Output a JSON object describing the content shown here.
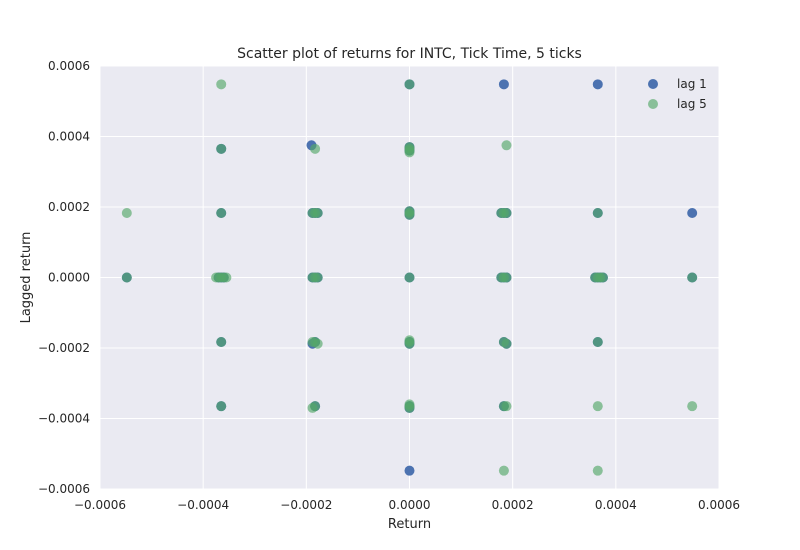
{
  "chart_data": {
    "type": "scatter",
    "title": "Scatter plot of returns for INTC, Tick Time, 5 ticks",
    "xlabel": "Return",
    "ylabel": "Lagged return",
    "xlim": [
      -0.0006,
      0.0006
    ],
    "ylim": [
      -0.0006,
      0.0006
    ],
    "x_ticks": [
      -0.0006,
      -0.0004,
      -0.0002,
      0.0,
      0.0002,
      0.0004,
      0.0006
    ],
    "y_ticks": [
      -0.0006,
      -0.0004,
      -0.0002,
      0.0,
      0.0002,
      0.0004,
      0.0006
    ],
    "x_tick_labels": [
      "−0.0006",
      "−0.0004",
      "−0.0002",
      "0.0000",
      "0.0002",
      "0.0004",
      "0.0006"
    ],
    "y_tick_labels": [
      "−0.0006",
      "−0.0004",
      "−0.0002",
      "0.0000",
      "0.0002",
      "0.0004",
      "0.0006"
    ],
    "grid": true,
    "legend_position": "top-right",
    "background_color": "#eaeaf2",
    "grid_color": "#ffffff",
    "series": [
      {
        "name": "lag 1",
        "color": "#4c72b0",
        "points": [
          [
            -0.000548,
            0.0
          ],
          [
            -0.000365,
            0.000365
          ],
          [
            -0.000365,
            0.000183
          ],
          [
            -0.000365,
            0.0
          ],
          [
            -0.00036,
            0.0
          ],
          [
            -0.00037,
            0.0
          ],
          [
            -0.000365,
            -0.000183
          ],
          [
            -0.000365,
            -0.000365
          ],
          [
            -0.00019,
            0.000375
          ],
          [
            -0.000183,
            0.000183
          ],
          [
            -0.000188,
            0.000183
          ],
          [
            -0.000178,
            0.000183
          ],
          [
            -0.000183,
            0.0
          ],
          [
            -0.000188,
            0.0
          ],
          [
            -0.000178,
            0.0
          ],
          [
            -0.000183,
            -0.000183
          ],
          [
            -0.000188,
            -0.000188
          ],
          [
            -0.000183,
            -0.000365
          ],
          [
            0.0,
            0.000548
          ],
          [
            0.0,
            0.000365
          ],
          [
            0.0,
            0.00037
          ],
          [
            0.0,
            0.00036
          ],
          [
            0.0,
            0.000183
          ],
          [
            0.0,
            0.000188
          ],
          [
            0.0,
            0.000178
          ],
          [
            0.0,
            0.0
          ],
          [
            0.0,
            -0.000183
          ],
          [
            0.0,
            -0.000188
          ],
          [
            0.0,
            -0.000365
          ],
          [
            0.0,
            -0.00037
          ],
          [
            0.0,
            -0.000548
          ],
          [
            0.000183,
            0.000548
          ],
          [
            0.000183,
            0.000183
          ],
          [
            0.000188,
            0.000183
          ],
          [
            0.000178,
            0.000183
          ],
          [
            0.000183,
            0.0
          ],
          [
            0.000188,
            0.0
          ],
          [
            0.000178,
            0.0
          ],
          [
            0.000183,
            -0.000183
          ],
          [
            0.000188,
            -0.000188
          ],
          [
            0.000183,
            -0.000365
          ],
          [
            0.000365,
            0.000548
          ],
          [
            0.000365,
            0.000183
          ],
          [
            0.000365,
            0.0
          ],
          [
            0.00037,
            0.0
          ],
          [
            0.000375,
            0.0
          ],
          [
            0.00036,
            0.0
          ],
          [
            0.000365,
            -0.000183
          ],
          [
            0.000548,
            0.000183
          ],
          [
            0.000548,
            0.0
          ]
        ]
      },
      {
        "name": "lag 5",
        "color": "#55a868",
        "points": [
          [
            -0.000548,
            0.000183
          ],
          [
            -0.000548,
            0.0
          ],
          [
            -0.000365,
            0.000548
          ],
          [
            -0.000365,
            0.000365
          ],
          [
            -0.000365,
            0.000183
          ],
          [
            -0.000365,
            0.0
          ],
          [
            -0.00036,
            0.0
          ],
          [
            -0.00037,
            0.0
          ],
          [
            -0.000355,
            0.0
          ],
          [
            -0.000375,
            0.0
          ],
          [
            -0.000365,
            -0.000183
          ],
          [
            -0.000365,
            -0.000365
          ],
          [
            -0.000183,
            0.000365
          ],
          [
            -0.000183,
            0.000183
          ],
          [
            -0.000188,
            0.000183
          ],
          [
            -0.000178,
            0.000183
          ],
          [
            -0.000183,
            0.0
          ],
          [
            -0.000188,
            0.0
          ],
          [
            -0.000178,
            0.0
          ],
          [
            -0.000183,
            -0.000183
          ],
          [
            -0.000188,
            -0.000183
          ],
          [
            -0.000178,
            -0.000188
          ],
          [
            -0.000183,
            -0.000365
          ],
          [
            -0.000188,
            -0.00037
          ],
          [
            0.0,
            0.000548
          ],
          [
            0.0,
            0.000365
          ],
          [
            0.0,
            0.00037
          ],
          [
            0.0,
            0.00036
          ],
          [
            0.0,
            0.000355
          ],
          [
            0.0,
            0.000183
          ],
          [
            0.0,
            0.000188
          ],
          [
            0.0,
            0.000178
          ],
          [
            0.0,
            0.0
          ],
          [
            0.0,
            -0.000183
          ],
          [
            0.0,
            -0.000188
          ],
          [
            0.0,
            -0.000178
          ],
          [
            0.0,
            -0.000365
          ],
          [
            0.0,
            -0.00037
          ],
          [
            0.0,
            -0.00036
          ],
          [
            0.000188,
            0.000375
          ],
          [
            0.000183,
            0.000183
          ],
          [
            0.000188,
            0.000183
          ],
          [
            0.000178,
            0.000183
          ],
          [
            0.000183,
            0.0
          ],
          [
            0.000188,
            0.0
          ],
          [
            0.000178,
            0.0
          ],
          [
            0.000183,
            -0.000183
          ],
          [
            0.000188,
            -0.000188
          ],
          [
            0.000183,
            -0.000365
          ],
          [
            0.000188,
            -0.000365
          ],
          [
            0.000183,
            -0.000548
          ],
          [
            0.000365,
            0.000183
          ],
          [
            0.000365,
            0.0
          ],
          [
            0.00037,
            0.0
          ],
          [
            0.000375,
            0.0
          ],
          [
            0.00036,
            0.0
          ],
          [
            0.000365,
            -0.000183
          ],
          [
            0.000365,
            -0.000365
          ],
          [
            0.000365,
            -0.000548
          ],
          [
            0.000548,
            0.0
          ],
          [
            0.000548,
            -0.000365
          ]
        ]
      }
    ]
  }
}
